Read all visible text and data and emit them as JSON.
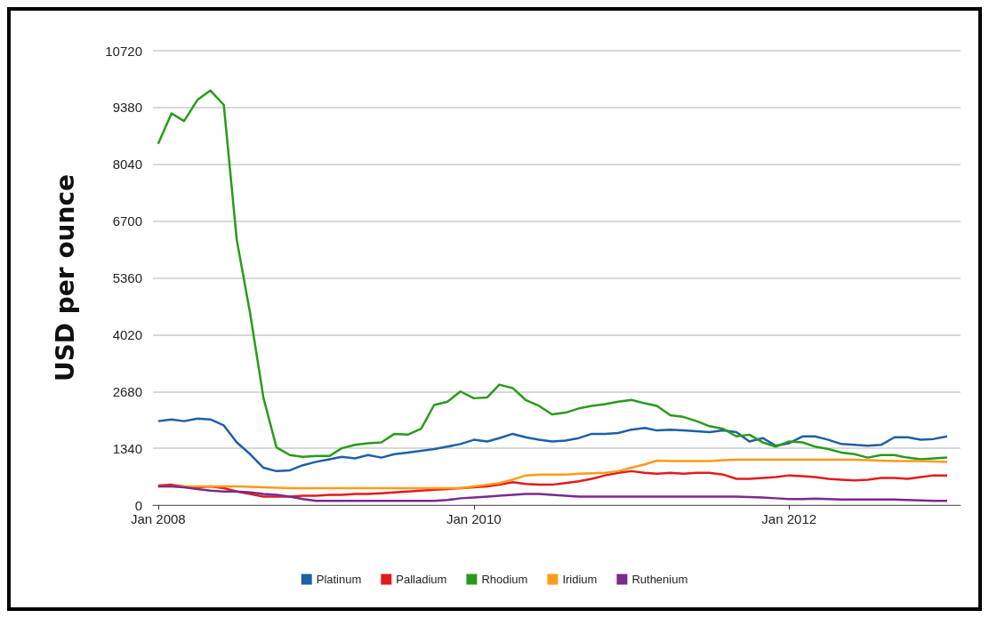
{
  "chart_data": {
    "type": "line",
    "ylabel": "USD per ounce",
    "x": [
      "2008-01",
      "2008-02",
      "2008-03",
      "2008-04",
      "2008-05",
      "2008-06",
      "2008-07",
      "2008-08",
      "2008-09",
      "2008-10",
      "2008-11",
      "2008-12",
      "2009-01",
      "2009-02",
      "2009-03",
      "2009-04",
      "2009-05",
      "2009-06",
      "2009-07",
      "2009-08",
      "2009-09",
      "2009-10",
      "2009-11",
      "2009-12",
      "2010-01",
      "2010-02",
      "2010-03",
      "2010-04",
      "2010-05",
      "2010-06",
      "2010-07",
      "2010-08",
      "2010-09",
      "2010-10",
      "2010-11",
      "2010-12",
      "2011-01",
      "2011-02",
      "2011-03",
      "2011-04",
      "2011-05",
      "2011-06",
      "2011-07",
      "2011-08",
      "2011-09",
      "2011-10",
      "2011-11",
      "2011-12",
      "2012-01",
      "2012-02",
      "2012-03",
      "2012-04",
      "2012-05",
      "2012-06",
      "2012-07",
      "2012-08",
      "2012-09",
      "2012-10",
      "2012-11",
      "2012-12",
      "2013-01"
    ],
    "series": [
      {
        "name": "Platinum",
        "color": "#1f5fa6",
        "values": [
          1980,
          2020,
          1980,
          2040,
          2020,
          1880,
          1480,
          1200,
          880,
          800,
          820,
          940,
          1020,
          1080,
          1140,
          1100,
          1180,
          1120,
          1200,
          1240,
          1280,
          1320,
          1380,
          1440,
          1540,
          1500,
          1580,
          1680,
          1600,
          1540,
          1500,
          1520,
          1580,
          1680,
          1680,
          1700,
          1780,
          1820,
          1760,
          1780,
          1760,
          1740,
          1720,
          1760,
          1720,
          1500,
          1580,
          1400,
          1460,
          1620,
          1620,
          1540,
          1440,
          1420,
          1400,
          1420,
          1600,
          1600,
          1540,
          1560,
          1620
        ]
      },
      {
        "name": "Palladium",
        "color": "#e31a1c",
        "values": [
          460,
          480,
          440,
          420,
          440,
          400,
          320,
          260,
          200,
          200,
          200,
          220,
          220,
          240,
          240,
          260,
          260,
          280,
          300,
          320,
          340,
          360,
          380,
          400,
          420,
          440,
          480,
          540,
          500,
          480,
          480,
          520,
          560,
          620,
          700,
          760,
          800,
          760,
          740,
          760,
          740,
          760,
          760,
          720,
          620,
          620,
          640,
          660,
          700,
          680,
          660,
          620,
          600,
          580,
          600,
          640,
          640,
          620,
          660,
          700,
          700
        ]
      },
      {
        "name": "Rhodium",
        "color": "#2a9a1a",
        "values": [
          8520,
          9240,
          9060,
          9560,
          9780,
          9440,
          6260,
          4520,
          2520,
          1360,
          1180,
          1140,
          1160,
          1160,
          1340,
          1420,
          1460,
          1480,
          1680,
          1660,
          1800,
          2360,
          2440,
          2680,
          2520,
          2540,
          2840,
          2760,
          2480,
          2340,
          2140,
          2180,
          2280,
          2340,
          2380,
          2440,
          2480,
          2400,
          2340,
          2120,
          2080,
          1980,
          1860,
          1800,
          1620,
          1660,
          1480,
          1380,
          1500,
          1480,
          1380,
          1320,
          1240,
          1200,
          1120,
          1180,
          1180,
          1120,
          1080,
          1100,
          1120
        ]
      },
      {
        "name": "Iridium",
        "color": "#ff9a1a",
        "values": [
          440,
          440,
          440,
          440,
          440,
          440,
          440,
          430,
          420,
          410,
          400,
          400,
          400,
          400,
          400,
          400,
          400,
          400,
          400,
          400,
          400,
          400,
          400,
          400,
          440,
          480,
          520,
          600,
          700,
          720,
          720,
          720,
          740,
          750,
          760,
          800,
          880,
          960,
          1050,
          1040,
          1040,
          1040,
          1040,
          1060,
          1070,
          1070,
          1070,
          1070,
          1070,
          1070,
          1070,
          1070,
          1070,
          1070,
          1060,
          1050,
          1040,
          1040,
          1040,
          1030,
          1020
        ]
      },
      {
        "name": "Ruthenium",
        "color": "#7b2a8a",
        "values": [
          440,
          440,
          420,
          380,
          340,
          320,
          320,
          300,
          260,
          240,
          200,
          140,
          100,
          100,
          100,
          100,
          100,
          100,
          100,
          100,
          100,
          100,
          120,
          160,
          180,
          200,
          220,
          240,
          260,
          260,
          240,
          220,
          200,
          200,
          200,
          200,
          200,
          200,
          200,
          200,
          200,
          200,
          200,
          200,
          200,
          190,
          180,
          160,
          140,
          140,
          150,
          140,
          130,
          130,
          130,
          130,
          130,
          120,
          110,
          100,
          100
        ]
      }
    ],
    "xlim": [
      "2007-12-20",
      "2013-02-01"
    ],
    "xticks": [
      {
        "value": "2008-01",
        "label": "Jan 2008"
      },
      {
        "value": "2010-01",
        "label": "Jan 2010"
      },
      {
        "value": "2012-01",
        "label": "Jan 2012"
      }
    ],
    "ylim": [
      0,
      10720
    ],
    "yticks": [
      0,
      1340,
      2680,
      4020,
      5360,
      6700,
      8040,
      9380,
      10720
    ],
    "grid": "y",
    "legend": "bottom",
    "marker": "none",
    "line_style": "solid"
  }
}
